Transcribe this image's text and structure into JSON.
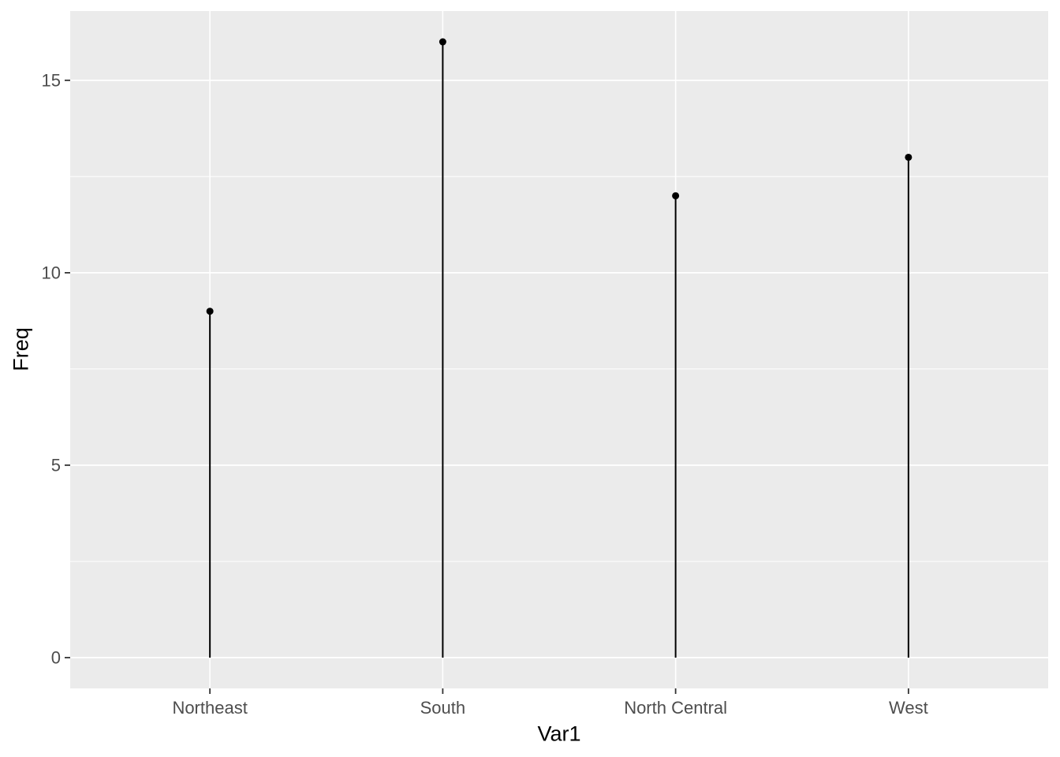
{
  "chart_data": {
    "type": "lollipop",
    "title": "",
    "xlabel": "Var1",
    "ylabel": "Freq",
    "categories": [
      "Northeast",
      "South",
      "North Central",
      "West"
    ],
    "values": [
      9,
      16,
      12,
      13
    ],
    "ylim": [
      -0.8,
      16.8
    ],
    "yticks": [
      0,
      5,
      10,
      15
    ],
    "ytick_labels": [
      "0",
      "5",
      "10",
      "15"
    ],
    "yticks_minor": [
      2.5,
      7.5,
      12.5
    ],
    "grid": "major-and-minor",
    "legend_position": "none",
    "colors": {
      "figure_background": "#FFFFFF",
      "panel_background": "#EBEBEB",
      "grid_major": "#FFFFFF",
      "grid_minor": "#FFFFFF",
      "stem": "#000000",
      "point": "#000000",
      "tick_mark": "#333333",
      "tick_label": "#4D4D4D",
      "axis_title": "#000000"
    }
  }
}
